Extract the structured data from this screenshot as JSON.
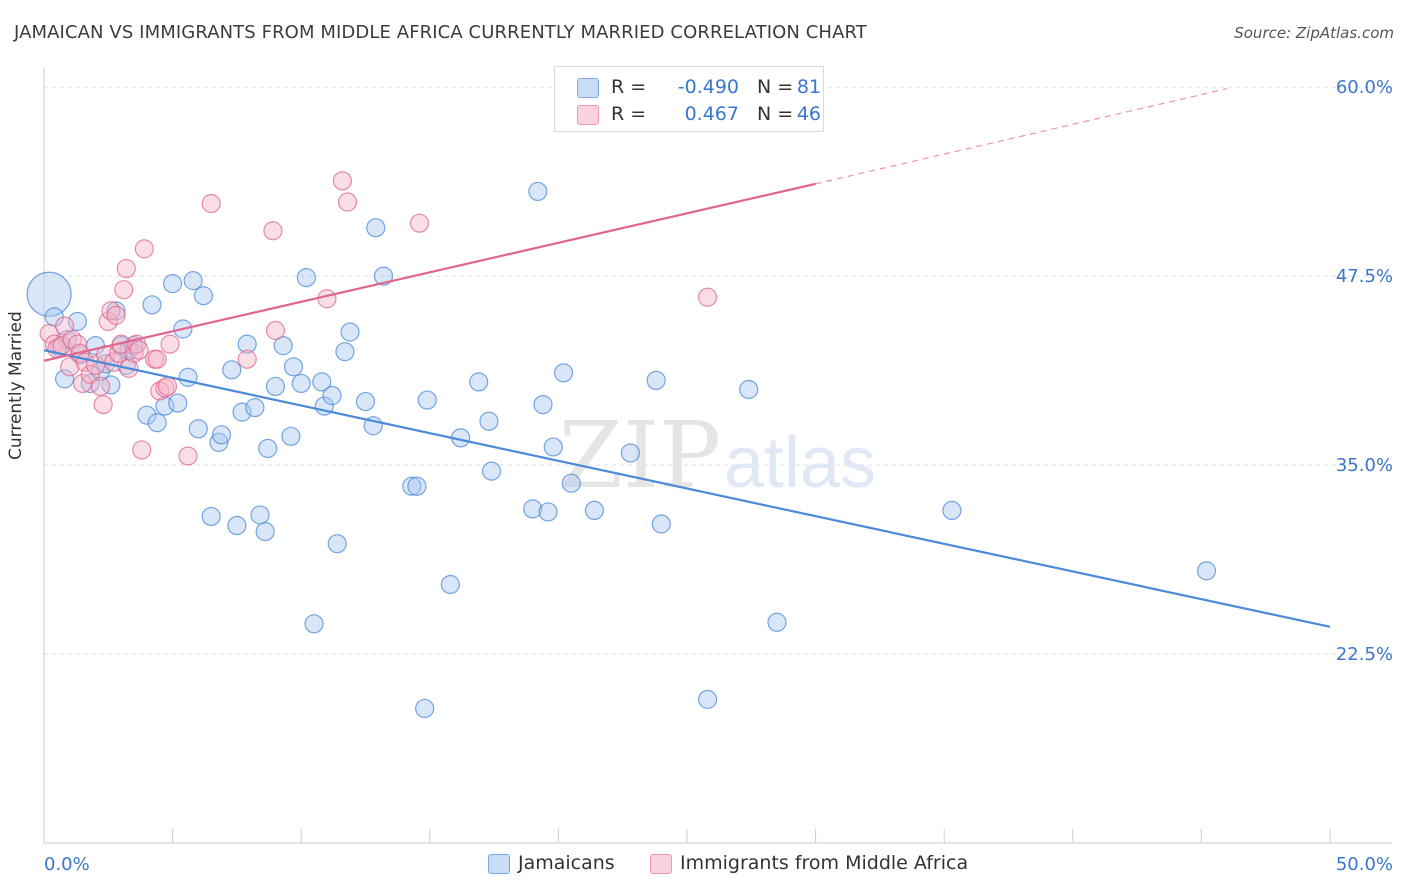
{
  "title": "JAMAICAN VS IMMIGRANTS FROM MIDDLE AFRICA CURRENTLY MARRIED CORRELATION CHART",
  "source": "Source: ZipAtlas.com",
  "watermark": {
    "zip": "ZIP",
    "atlas": "atlas"
  },
  "legend_top": {
    "rows": [
      {
        "r_label": "R =",
        "r_value": "-0.490",
        "n_label": "N =",
        "n_value": "81",
        "color": "#a9c8ef"
      },
      {
        "r_label": "R =",
        "r_value": "0.467",
        "n_label": "N = ",
        "n_value": "46",
        "color": "#f5b6c8"
      }
    ]
  },
  "legend_bottom": {
    "items": [
      {
        "label": "Jamaicans",
        "color": "#a9c8ef"
      },
      {
        "label": "Immigrants from Middle Africa",
        "color": "#f5b6c8"
      }
    ]
  },
  "chart_data": {
    "type": "scatter",
    "title": "JAMAICAN VS IMMIGRANTS FROM MIDDLE AFRICA CURRENTLY MARRIED CORRELATION CHART",
    "xlabel": "",
    "ylabel": "Currently Married",
    "xlim": [
      0,
      50
    ],
    "ylim": [
      10,
      61
    ],
    "x_tick_labels": [
      "0.0%",
      "50.0%"
    ],
    "y_ticks": [
      22.5,
      35.0,
      47.5,
      60.0
    ],
    "y_tick_labels": [
      "22.5%",
      "35.0%",
      "47.5%",
      "60.0%"
    ],
    "grid": true,
    "legend_position": "bottom",
    "series": [
      {
        "name": "Jamaicans",
        "color": "#4a8ad8",
        "fill": "#a9c8ef",
        "r": -0.49,
        "n": 81,
        "trend": {
          "x": [
            0,
            50
          ],
          "y": [
            42.6,
            24.3
          ],
          "dashed_from": null
        },
        "points": [
          [
            0.2,
            46.3
          ],
          [
            0.4,
            44.8
          ],
          [
            0.6,
            42.8
          ],
          [
            0.9,
            43.3
          ],
          [
            0.8,
            40.7
          ],
          [
            1.3,
            44.5
          ],
          [
            1.4,
            42.3
          ],
          [
            1.8,
            40.4
          ],
          [
            2.0,
            42.9
          ],
          [
            2.2,
            41.2
          ],
          [
            2.4,
            41.7
          ],
          [
            2.6,
            40.3
          ],
          [
            2.8,
            45.2
          ],
          [
            3.0,
            42.9
          ],
          [
            3.2,
            41.6
          ],
          [
            3.3,
            42.6
          ],
          [
            3.5,
            42.9
          ],
          [
            4.0,
            38.3
          ],
          [
            4.2,
            45.6
          ],
          [
            4.4,
            37.8
          ],
          [
            4.7,
            38.9
          ],
          [
            5.0,
            47.0
          ],
          [
            5.2,
            39.1
          ],
          [
            5.4,
            44.0
          ],
          [
            5.6,
            40.8
          ],
          [
            5.8,
            47.2
          ],
          [
            6.0,
            37.4
          ],
          [
            6.2,
            46.2
          ],
          [
            6.5,
            31.6
          ],
          [
            6.8,
            36.5
          ],
          [
            6.9,
            37.0
          ],
          [
            7.3,
            41.3
          ],
          [
            7.5,
            31.0
          ],
          [
            7.7,
            38.5
          ],
          [
            7.9,
            43.0
          ],
          [
            8.2,
            38.8
          ],
          [
            8.4,
            31.7
          ],
          [
            8.6,
            30.6
          ],
          [
            8.7,
            36.1
          ],
          [
            9.0,
            40.2
          ],
          [
            9.3,
            42.9
          ],
          [
            9.6,
            36.9
          ],
          [
            9.7,
            41.5
          ],
          [
            10.0,
            40.4
          ],
          [
            10.2,
            47.4
          ],
          [
            10.5,
            24.5
          ],
          [
            10.8,
            40.5
          ],
          [
            10.9,
            38.9
          ],
          [
            11.2,
            39.6
          ],
          [
            11.4,
            29.8
          ],
          [
            11.7,
            42.5
          ],
          [
            11.9,
            43.8
          ],
          [
            12.5,
            39.2
          ],
          [
            12.8,
            37.6
          ],
          [
            12.9,
            50.7
          ],
          [
            13.2,
            47.5
          ],
          [
            14.3,
            33.6
          ],
          [
            14.5,
            33.6
          ],
          [
            14.8,
            18.9
          ],
          [
            14.9,
            39.3
          ],
          [
            15.8,
            27.1
          ],
          [
            16.2,
            36.8
          ],
          [
            16.9,
            40.5
          ],
          [
            17.3,
            37.9
          ],
          [
            17.4,
            34.6
          ],
          [
            19.0,
            32.1
          ],
          [
            19.2,
            53.1
          ],
          [
            19.4,
            39.0
          ],
          [
            19.6,
            31.9
          ],
          [
            19.8,
            36.2
          ],
          [
            20.2,
            41.1
          ],
          [
            20.5,
            33.8
          ],
          [
            21.4,
            32.0
          ],
          [
            22.8,
            35.8
          ],
          [
            23.8,
            40.6
          ],
          [
            24.0,
            31.1
          ],
          [
            25.8,
            19.5
          ],
          [
            27.4,
            40.0
          ],
          [
            28.5,
            24.6
          ],
          [
            35.3,
            32.0
          ],
          [
            45.2,
            28.0
          ]
        ]
      },
      {
        "name": "Immigrants from Middle Africa",
        "color": "#e0658f",
        "fill": "#f5b6c8",
        "r": 0.467,
        "n": 46,
        "trend": {
          "x": [
            0,
            30.0,
            46.0
          ],
          "y": [
            41.9,
            53.6,
            59.9
          ],
          "dashed_from": 30.0
        },
        "points": [
          [
            0.2,
            43.7
          ],
          [
            0.4,
            43.0
          ],
          [
            0.5,
            42.7
          ],
          [
            0.7,
            42.9
          ],
          [
            0.8,
            44.2
          ],
          [
            1.0,
            41.5
          ],
          [
            1.1,
            43.3
          ],
          [
            1.3,
            43.0
          ],
          [
            1.4,
            42.4
          ],
          [
            1.5,
            40.4
          ],
          [
            1.6,
            41.8
          ],
          [
            1.8,
            41.0
          ],
          [
            2.0,
            41.6
          ],
          [
            2.2,
            40.2
          ],
          [
            2.3,
            39.0
          ],
          [
            2.4,
            42.3
          ],
          [
            2.5,
            44.5
          ],
          [
            2.6,
            45.2
          ],
          [
            2.7,
            41.8
          ],
          [
            2.8,
            44.9
          ],
          [
            2.9,
            42.4
          ],
          [
            3.0,
            43.0
          ],
          [
            3.1,
            46.6
          ],
          [
            3.2,
            48.0
          ],
          [
            3.3,
            41.4
          ],
          [
            3.5,
            42.4
          ],
          [
            3.6,
            43.0
          ],
          [
            3.7,
            42.6
          ],
          [
            3.8,
            36.0
          ],
          [
            3.9,
            49.3
          ],
          [
            4.3,
            42.0
          ],
          [
            4.4,
            42.0
          ],
          [
            4.5,
            39.9
          ],
          [
            4.7,
            40.1
          ],
          [
            4.8,
            40.2
          ],
          [
            4.9,
            43.0
          ],
          [
            5.6,
            35.6
          ],
          [
            6.5,
            52.3
          ],
          [
            7.9,
            42.0
          ],
          [
            8.9,
            50.5
          ],
          [
            9.0,
            43.9
          ],
          [
            11.0,
            46.0
          ],
          [
            11.6,
            53.8
          ],
          [
            11.8,
            52.4
          ],
          [
            14.6,
            51.0
          ],
          [
            25.8,
            46.1
          ]
        ]
      }
    ]
  }
}
